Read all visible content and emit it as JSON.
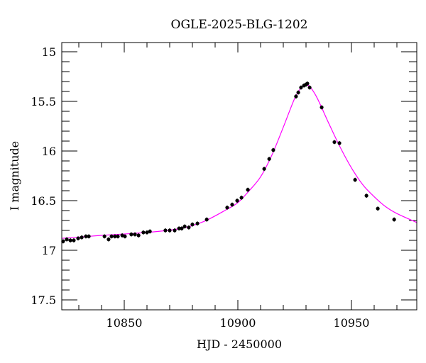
{
  "chart_data": {
    "type": "scatter",
    "title": "OGLE-2025-BLG-1202",
    "xlabel": "HJD - 2450000",
    "ylabel": "I magnitude",
    "xlim": [
      10822.5,
      10978.75
    ],
    "ylim": [
      17.6,
      14.907
    ],
    "y_inverted": true,
    "x_ticks": [
      10850,
      10900,
      10950
    ],
    "y_ticks": [
      15,
      15.5,
      16,
      16.5,
      17,
      17.5
    ],
    "x_tick_labels": [
      "10850",
      "10900",
      "10950"
    ],
    "y_tick_labels": [
      "15",
      "15.5",
      "16",
      "16.5",
      "17",
      "17.5"
    ],
    "grid": false,
    "colors": {
      "points": "#000000",
      "model": "#ff00ff"
    },
    "series": [
      {
        "type": "scatter",
        "x": [
          10823.1,
          10824.7,
          10826.3,
          10827.8,
          10829.7,
          10831.3,
          10833.1,
          10834.4,
          10841.3,
          10843.1,
          10844.4,
          10845.9,
          10847.2,
          10849.1,
          10850.3,
          10853.1,
          10854.7,
          10856.3,
          10858.4,
          10860.0,
          10861.3,
          10868.1,
          10870.0,
          10872.2,
          10874.1,
          10875.3,
          10876.6,
          10878.4,
          10880.0,
          10882.2,
          10886.3,
          10895.3,
          10897.5,
          10899.7,
          10901.6,
          10904.4,
          10911.6,
          10913.8,
          10915.6,
          10925.6,
          10926.6,
          10927.8,
          10929.1,
          10930.0,
          10930.6,
          10931.6,
          10936.9,
          10942.5,
          10944.7,
          10951.6,
          10956.6,
          10961.6,
          10968.8
        ],
        "y": [
          16.91,
          16.89,
          16.9,
          16.9,
          16.88,
          16.87,
          16.86,
          16.86,
          16.86,
          16.89,
          16.86,
          16.86,
          16.86,
          16.85,
          16.86,
          16.84,
          16.84,
          16.85,
          16.82,
          16.82,
          16.81,
          16.8,
          16.8,
          16.8,
          16.78,
          16.78,
          16.76,
          16.77,
          16.74,
          16.73,
          16.69,
          16.57,
          16.54,
          16.5,
          16.47,
          16.39,
          16.18,
          16.08,
          15.99,
          15.45,
          15.41,
          15.36,
          15.34,
          15.33,
          15.32,
          15.36,
          15.56,
          15.91,
          15.92,
          16.29,
          16.45,
          16.58,
          16.69
        ]
      },
      {
        "type": "line",
        "x": [
          10822.5,
          10840,
          10860,
          10875,
          10885,
          10895,
          10900,
          10905,
          10910,
          10915,
          10920,
          10925,
          10928,
          10930,
          10932,
          10935,
          10940,
          10945,
          10950,
          10955,
          10960,
          10965,
          10970,
          10978.75
        ],
        "y": [
          16.88,
          16.85,
          16.82,
          16.78,
          16.71,
          16.59,
          16.52,
          16.4,
          16.26,
          16.04,
          15.76,
          15.47,
          15.36,
          15.33,
          15.36,
          15.47,
          15.72,
          15.96,
          16.17,
          16.34,
          16.46,
          16.56,
          16.63,
          16.72
        ]
      }
    ]
  }
}
